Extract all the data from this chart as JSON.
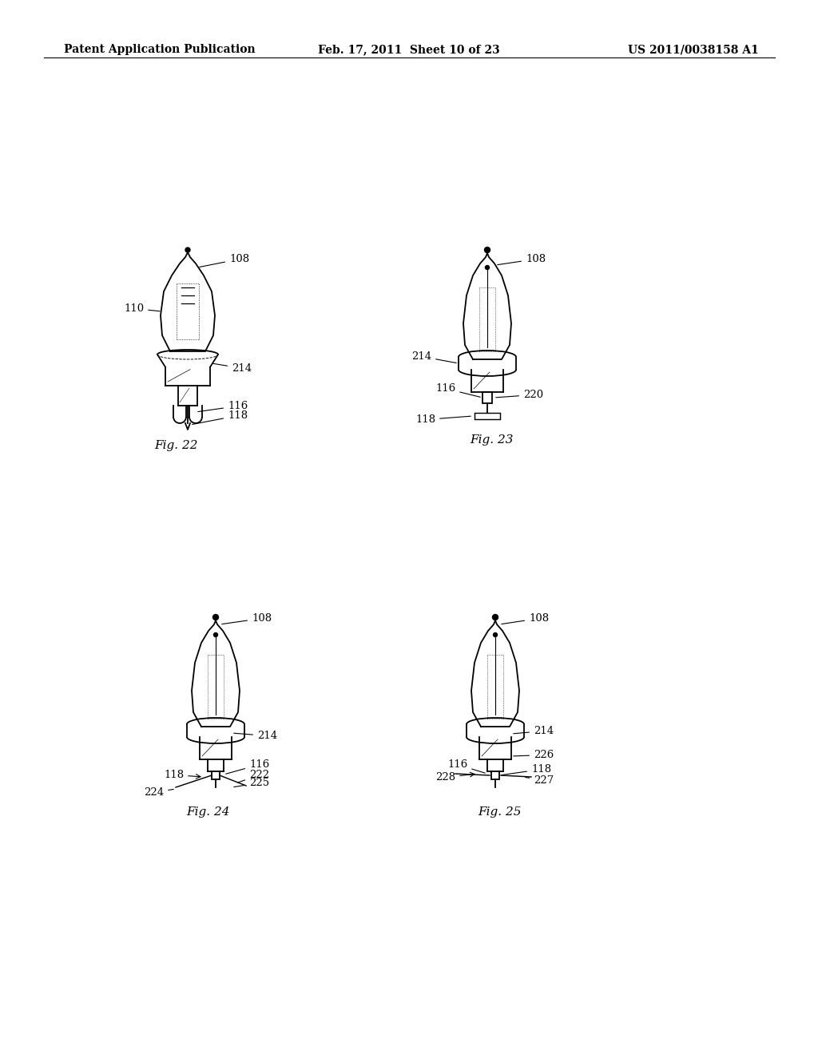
{
  "background_color": "#ffffff",
  "page_width": 10.24,
  "page_height": 13.2,
  "header": {
    "left": "Patent Application Publication",
    "center": "Feb. 17, 2011  Sheet 10 of 23",
    "right": "US 2011/0038158 A1",
    "fontsize": 10
  }
}
